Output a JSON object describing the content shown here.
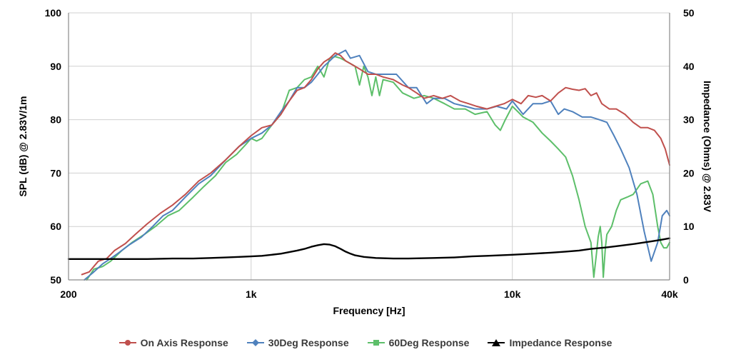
{
  "chart_data": {
    "type": "line",
    "xlabel": "Frequency [Hz]",
    "ylabel": "SPL (dB) @ 2.83V/1m",
    "y2label": "Impedance (Ohms) @ 2.83V",
    "x_scale": "log",
    "xlim": [
      200,
      40000
    ],
    "ylim": [
      50,
      100
    ],
    "y2lim": [
      0,
      50
    ],
    "x_ticks": [
      {
        "value": 200,
        "label": "200"
      },
      {
        "value": 1000,
        "label": "1k"
      },
      {
        "value": 10000,
        "label": "10k"
      },
      {
        "value": 40000,
        "label": "40k"
      }
    ],
    "y_ticks": [
      {
        "value": 50,
        "label": "50"
      },
      {
        "value": 60,
        "label": "60"
      },
      {
        "value": 70,
        "label": "70"
      },
      {
        "value": 80,
        "label": "80"
      },
      {
        "value": 90,
        "label": "90"
      },
      {
        "value": 100,
        "label": "100"
      }
    ],
    "y2_ticks": [
      {
        "value": 0,
        "label": "0"
      },
      {
        "value": 10,
        "label": "10"
      },
      {
        "value": 20,
        "label": "20"
      },
      {
        "value": 30,
        "label": "30"
      },
      {
        "value": 40,
        "label": "40"
      },
      {
        "value": 50,
        "label": "50"
      }
    ],
    "grid": true,
    "legend_position": "bottom",
    "series": [
      {
        "name": "On Axis Response",
        "color": "#c0504d",
        "marker": "circle",
        "axis": "left",
        "x": [
          225,
          240,
          260,
          280,
          300,
          330,
          360,
          400,
          450,
          500,
          560,
          630,
          700,
          800,
          900,
          1000,
          1100,
          1200,
          1300,
          1400,
          1500,
          1600,
          1700,
          1800,
          1900,
          2000,
          2100,
          2200,
          2300,
          2400,
          2600,
          2800,
          3000,
          3200,
          3500,
          3800,
          4000,
          4300,
          4600,
          5000,
          5400,
          5800,
          6300,
          6800,
          7300,
          8000,
          8600,
          9300,
          10000,
          10800,
          11500,
          12300,
          13000,
          14000,
          15000,
          16000,
          17000,
          18000,
          19000,
          20000,
          21000,
          22000,
          23500,
          25000,
          27000,
          29000,
          31000,
          33000,
          35000,
          37000,
          38500,
          40000
        ],
        "y": [
          51.0,
          51.5,
          53.5,
          54.0,
          55.5,
          56.8,
          58.5,
          60.5,
          62.5,
          64.0,
          66.0,
          68.5,
          70.0,
          72.5,
          75.0,
          77.0,
          78.5,
          79.0,
          81.0,
          83.5,
          85.5,
          86.0,
          87.5,
          89.5,
          90.8,
          91.5,
          92.5,
          92.0,
          91.0,
          90.5,
          89.5,
          88.5,
          88.5,
          88.0,
          87.5,
          86.5,
          86.0,
          85.0,
          84.0,
          84.5,
          84.0,
          84.5,
          83.5,
          83.0,
          82.5,
          82.0,
          82.5,
          83.0,
          83.8,
          83.0,
          84.5,
          84.2,
          84.5,
          83.5,
          85.0,
          86.0,
          85.7,
          85.5,
          85.8,
          84.5,
          85.0,
          83.0,
          82.0,
          82.0,
          81.0,
          79.5,
          78.5,
          78.5,
          78.0,
          76.5,
          74.5,
          71.5
        ]
      },
      {
        "name": "30Deg Response",
        "color": "#4f81bd",
        "marker": "diamond",
        "axis": "left",
        "x": [
          230,
          250,
          270,
          290,
          310,
          340,
          380,
          420,
          460,
          500,
          560,
          630,
          700,
          800,
          900,
          1000,
          1100,
          1200,
          1300,
          1400,
          1500,
          1600,
          1700,
          1800,
          1900,
          2000,
          2100,
          2200,
          2300,
          2400,
          2600,
          2800,
          3000,
          3300,
          3600,
          4000,
          4300,
          4700,
          5000,
          5500,
          6000,
          6600,
          7200,
          8000,
          8700,
          9500,
          10000,
          11000,
          12000,
          13000,
          14000,
          15000,
          15800,
          17000,
          18500,
          20000,
          21500,
          23000,
          24500,
          26000,
          28000,
          30000,
          32000,
          34000,
          36000,
          37500,
          39000,
          40000
        ],
        "y": [
          50.0,
          51.5,
          53.0,
          54.0,
          55.0,
          56.5,
          58.0,
          60.0,
          62.0,
          63.0,
          65.5,
          68.0,
          69.5,
          72.5,
          75.0,
          76.5,
          77.5,
          79.0,
          81.5,
          83.5,
          86.0,
          86.0,
          87.0,
          88.5,
          90.0,
          91.0,
          92.0,
          92.5,
          93.0,
          91.5,
          92.0,
          89.0,
          88.5,
          88.5,
          88.5,
          86.0,
          86.0,
          83.0,
          84.0,
          84.0,
          83.0,
          82.5,
          82.0,
          82.0,
          82.5,
          82.0,
          83.5,
          81.0,
          83.0,
          83.0,
          83.5,
          81.0,
          82.0,
          81.5,
          80.5,
          80.5,
          80.0,
          79.5,
          77.0,
          74.5,
          71.0,
          66.0,
          59.0,
          53.5,
          57.0,
          62.0,
          63.0,
          62.0
        ]
      },
      {
        "name": "60Deg Response",
        "color": "#5dbf6a",
        "marker": "square",
        "axis": "left",
        "x": [
          235,
          250,
          270,
          290,
          320,
          350,
          390,
          430,
          480,
          530,
          600,
          660,
          730,
          800,
          880,
          960,
          1000,
          1050,
          1100,
          1200,
          1300,
          1400,
          1500,
          1600,
          1700,
          1800,
          1900,
          2000,
          2100,
          2200,
          2300,
          2500,
          2600,
          2700,
          2800,
          2900,
          3000,
          3100,
          3200,
          3500,
          3800,
          4200,
          4600,
          5000,
          5500,
          6000,
          6600,
          7200,
          8000,
          8600,
          9000,
          9400,
          10000,
          10500,
          11000,
          12000,
          13000,
          14000,
          15000,
          16000,
          17000,
          18000,
          19000,
          20000,
          20500,
          21000,
          21300,
          21700,
          22000,
          22300,
          22700,
          23000,
          24000,
          25000,
          26000,
          27500,
          29000,
          31000,
          33000,
          34500,
          36000,
          37000,
          38000,
          39000,
          40000
        ],
        "y": [
          50.0,
          52.0,
          52.5,
          53.5,
          55.5,
          57.0,
          58.5,
          60.0,
          62.0,
          63.0,
          65.5,
          67.5,
          69.5,
          72.0,
          73.5,
          75.5,
          76.5,
          76.0,
          76.5,
          79.0,
          81.0,
          85.5,
          86.0,
          87.5,
          88.0,
          90.0,
          88.0,
          91.5,
          91.8,
          91.5,
          91.0,
          90.0,
          86.5,
          90.0,
          88.0,
          84.5,
          88.0,
          84.5,
          87.5,
          87.0,
          85.0,
          84.0,
          84.5,
          84.0,
          83.0,
          82.0,
          82.0,
          81.0,
          81.5,
          79.0,
          78.0,
          80.0,
          82.5,
          81.5,
          80.5,
          79.5,
          77.5,
          76.0,
          74.5,
          73.0,
          69.5,
          65.0,
          60.0,
          57.0,
          50.5,
          55.0,
          58.0,
          60.0,
          57.0,
          50.5,
          56.0,
          58.5,
          60.0,
          63.0,
          65.0,
          65.5,
          66.0,
          68.0,
          68.5,
          66.0,
          60.0,
          57.0,
          56.0,
          56.0,
          57.0
        ]
      },
      {
        "name": "Impedance Response",
        "color": "#000000",
        "marker": "triangle",
        "axis": "right",
        "x": [
          200,
          300,
          400,
          500,
          600,
          700,
          800,
          900,
          1000,
          1100,
          1200,
          1300,
          1400,
          1500,
          1600,
          1700,
          1800,
          1900,
          2000,
          2100,
          2200,
          2300,
          2400,
          2500,
          2700,
          3000,
          3500,
          4000,
          5000,
          6000,
          7000,
          8000,
          10000,
          12000,
          14000,
          16000,
          18000,
          20000,
          23000,
          26000,
          30000,
          34000,
          37000,
          40000
        ],
        "y": [
          3.9,
          3.9,
          3.9,
          4.0,
          4.0,
          4.1,
          4.2,
          4.3,
          4.4,
          4.5,
          4.7,
          4.9,
          5.2,
          5.5,
          5.8,
          6.2,
          6.5,
          6.7,
          6.6,
          6.3,
          5.8,
          5.3,
          4.9,
          4.6,
          4.3,
          4.1,
          4.0,
          4.0,
          4.1,
          4.2,
          4.4,
          4.5,
          4.7,
          4.9,
          5.1,
          5.3,
          5.5,
          5.8,
          6.1,
          6.4,
          6.8,
          7.2,
          7.5,
          7.8
        ]
      }
    ]
  }
}
